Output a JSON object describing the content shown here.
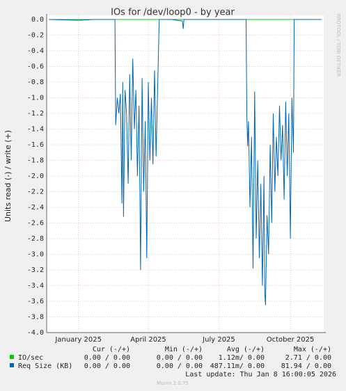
{
  "chart_data": {
    "type": "line",
    "title": "IOs for /dev/loop0 - by year",
    "y_label": "Units read (-) / write (+)",
    "side_text": "RRDTOOL / TOBI OETIKER",
    "xlim": [
      -41,
      316
    ],
    "xticks": [
      {
        "value": 0,
        "label": "January 2025"
      },
      {
        "value": 90,
        "label": "April 2025"
      },
      {
        "value": 181,
        "label": "July 2025"
      },
      {
        "value": 273,
        "label": "October 2025"
      }
    ],
    "ylim": [
      -4.0,
      0.0
    ],
    "yticks": [
      {
        "value": 0,
        "label": "0.0"
      },
      -0.2,
      -0.4,
      -0.6,
      -0.8,
      {
        "value": -1,
        "label": "-1.0"
      },
      -1.2,
      -1.4,
      -1.6,
      -1.8,
      {
        "value": -2,
        "label": "-2.0"
      },
      -2.2,
      -2.4,
      -2.6,
      -2.8,
      {
        "value": -3,
        "label": "-3.0"
      },
      -3.2,
      -3.4,
      -3.6,
      -3.8,
      {
        "value": -4,
        "label": "-4.0"
      }
    ],
    "grid": true,
    "series": [
      {
        "name": "IO/sec",
        "color": "#00cc00",
        "x": [
          -38,
          313
        ],
        "values": [
          0,
          0
        ]
      },
      {
        "name": "Req Size (KB)",
        "color": "#0066b3",
        "x": [
          -38,
          0,
          20,
          47,
          48,
          50,
          52,
          54,
          56,
          57,
          58,
          60,
          62,
          64,
          66,
          68,
          70,
          72,
          74,
          76,
          78,
          80,
          82,
          84,
          86,
          88,
          90,
          92,
          94,
          96,
          98,
          100,
          102,
          104,
          120,
          134,
          135,
          136,
          180,
          216,
          217,
          218,
          219,
          221,
          223,
          225,
          227,
          229,
          231,
          233,
          235,
          237,
          239,
          240,
          241,
          243,
          245,
          247,
          249,
          251,
          253,
          255,
          257,
          259,
          261,
          263,
          265,
          267,
          269,
          271,
          273,
          275,
          277,
          278,
          300,
          313
        ],
        "values": [
          0,
          -0.01,
          0,
          0,
          -1.35,
          -1.0,
          -1.2,
          -0.95,
          -2.35,
          -0.8,
          -2.52,
          -0.9,
          -1.2,
          -2.1,
          -0.7,
          -1.8,
          -0.5,
          -1.4,
          -0.9,
          -2.0,
          -1.1,
          -3.2,
          -0.75,
          -2.2,
          -1.3,
          -3.05,
          -0.8,
          -1.8,
          -1.0,
          -1.85,
          -0.65,
          -1.75,
          -0.9,
          0,
          0,
          -0.02,
          -0.12,
          0,
          0,
          0,
          -1.25,
          -1.62,
          -1.3,
          -2.4,
          -1.5,
          -3.18,
          -0.92,
          -2.8,
          -1.8,
          -3.05,
          -2.1,
          -3.4,
          -2.0,
          -3.5,
          -3.65,
          -2.5,
          -3.0,
          -1.6,
          -2.6,
          -1.2,
          -2.2,
          -1.5,
          -2.0,
          -1.1,
          -1.8,
          -1.35,
          -2.3,
          -1.05,
          -2.0,
          -1.2,
          -2.8,
          -1.0,
          -1.7,
          0,
          0,
          0
        ]
      }
    ],
    "legend_table": {
      "headers": [
        "Cur (-/+)",
        "Min (-/+)",
        "Avg (-/+)",
        "Max (-/+)"
      ],
      "rows": [
        [
          "0.00 / 0.00",
          "0.00 / 0.00",
          "1.12m/ 0.00",
          "2.71 / 0.00"
        ],
        [
          "0.00 / 0.00",
          "0.00 / 0.00",
          "487.11m/ 0.00",
          "81.94 / 0.00"
        ]
      ]
    },
    "last_update": "Last update: Thu Jan  8 16:00:05 2026",
    "footer": "Munin 2.0.75"
  }
}
